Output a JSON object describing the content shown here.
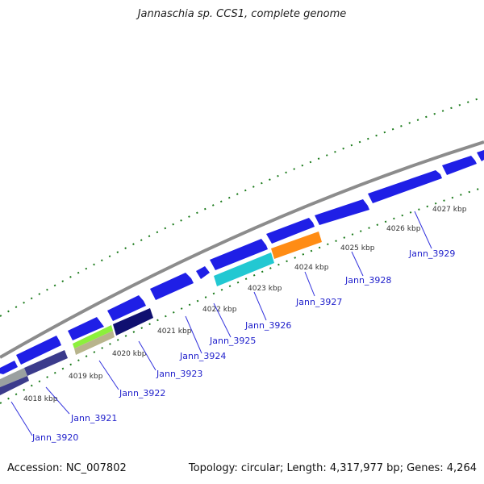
{
  "title": "Jannaschia sp. CCS1, complete genome",
  "footer": {
    "accession": "Accession: NC_007802",
    "summary": "Topology: circular; Length: 4,317,977 bp; Genes: 4,264"
  },
  "colors": {
    "backbone": "#8c8c8c",
    "tick": "#1a7a1a",
    "cds_forward": "#1f1fe6",
    "gene_label": "#2222cc",
    "leader": "#3333dd"
  },
  "kbp_labels": [
    "4018 kbp",
    "4019 kbp",
    "4020 kbp",
    "4021 kbp",
    "4022 kbp",
    "4023 kbp",
    "4024 kbp",
    "4025 kbp",
    "4026 kbp",
    "4027 kbp"
  ],
  "gene_labels": [
    "Jann_3920",
    "Jann_3921",
    "Jann_3922",
    "Jann_3923",
    "Jann_3924",
    "Jann_3925",
    "Jann_3926",
    "Jann_3927",
    "Jann_3928",
    "Jann_3929"
  ],
  "features": [
    {
      "track": "forward",
      "color": "#1f1fe6"
    },
    {
      "track": "reverse",
      "color": "#3b3b8c"
    },
    {
      "track": "reverse",
      "color": "#9aa0a0"
    },
    {
      "track": "reverse",
      "color": "#8cf03c"
    },
    {
      "track": "reverse",
      "color": "#b8b48c"
    },
    {
      "track": "reverse",
      "color": "#101070"
    },
    {
      "track": "reverse",
      "color": "#22c8d2"
    },
    {
      "track": "reverse",
      "color": "#ff8c14"
    }
  ]
}
